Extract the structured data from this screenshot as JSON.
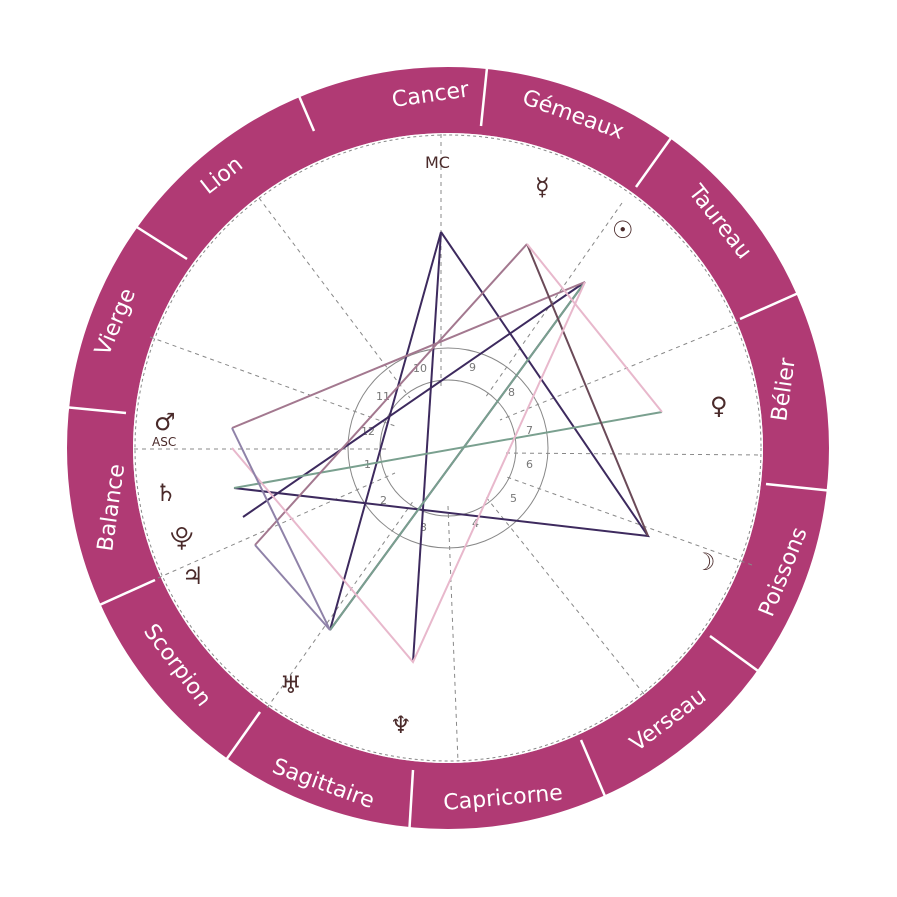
{
  "colors": {
    "wheel": "#b03a74",
    "wheel_divider": "#ffffff",
    "aspect_lines": [
      "#3d2a5e",
      "#a3788f",
      "#e8b8cc",
      "#7aa08f",
      "#6b4a58",
      "#8f82a8"
    ]
  },
  "zodiac_signs": [
    "Cancer",
    "Gémeaux",
    "Taureau",
    "Bélier",
    "Poissons",
    "Verseau",
    "Capricorne",
    "Sagittaire",
    "Scorpion",
    "Balance",
    "Vierge",
    "Lion"
  ],
  "axis_labels": {
    "mc": "MC",
    "asc": "ASC"
  },
  "planets": [
    {
      "name": "mercury",
      "glyph": "☿"
    },
    {
      "name": "sun",
      "glyph": "☉"
    },
    {
      "name": "venus",
      "glyph": "♀"
    },
    {
      "name": "moon",
      "glyph": "☽"
    },
    {
      "name": "neptune",
      "glyph": "♆"
    },
    {
      "name": "uranus",
      "glyph": "♅"
    },
    {
      "name": "jupiter",
      "glyph": "♃"
    },
    {
      "name": "pluto",
      "glyph": "⯓"
    },
    {
      "name": "saturn",
      "glyph": "♄"
    },
    {
      "name": "mars",
      "glyph": "♂"
    }
  ],
  "house_numbers": [
    "1",
    "2",
    "3",
    "4",
    "5",
    "6",
    "7",
    "8",
    "9",
    "10",
    "11",
    "12"
  ]
}
